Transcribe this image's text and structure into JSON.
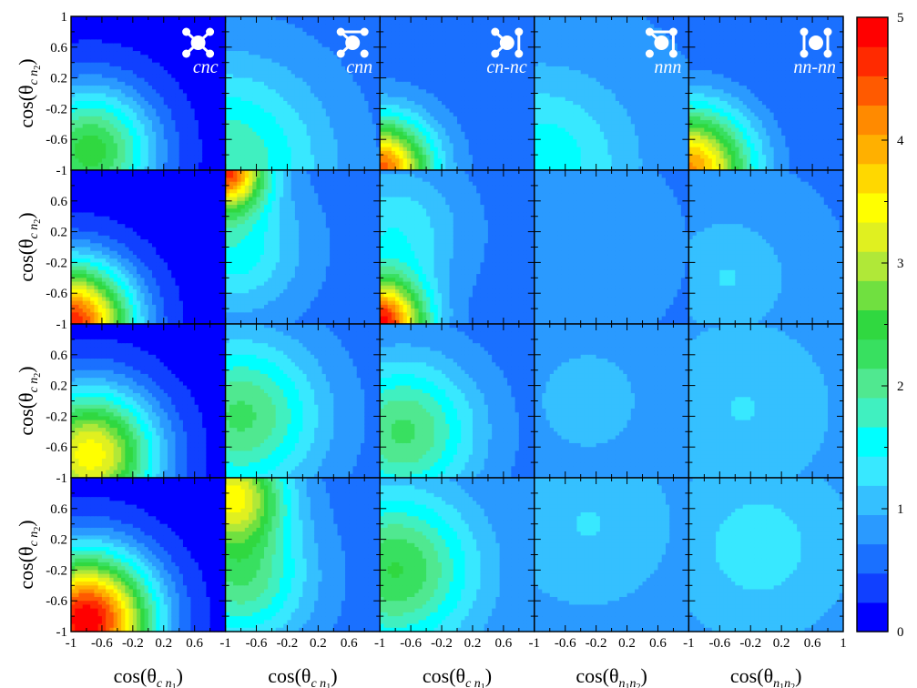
{
  "chart_data": {
    "type": "heatmap",
    "grid": {
      "rows": 4,
      "cols": 5
    },
    "panel_names": [
      "cnc",
      "cnn",
      "cn-nc",
      "nnn",
      "nn-nn"
    ],
    "x_ticks": [
      "-1",
      "-0.6",
      "-0.2",
      "0.2",
      "0.6"
    ],
    "x_ticks_last": [
      "-1",
      "-0.6",
      "-0.2",
      "0.2",
      "0.6",
      "1"
    ],
    "y_ticks": [
      "1",
      "0.6",
      "0.2",
      "-0.2",
      "-0.6",
      "-1"
    ],
    "y_ticks_inner": [
      "0.6",
      "0.2",
      "-0.2",
      "-0.6",
      "-1"
    ],
    "xlim": [
      -1,
      1
    ],
    "ylim": [
      -1,
      1
    ],
    "ylabel": "cos(θ",
    "ylabel_sub": "c n",
    "ylabel_subsub": "2",
    "xlabels": [
      {
        "text": "cos(θ",
        "sub": "c n",
        "subsub": "1"
      },
      {
        "text": "cos(θ",
        "sub": "c n",
        "subsub": "1"
      },
      {
        "text": "cos(θ",
        "sub": "c n",
        "subsub": "1"
      },
      {
        "text": "cos(θ",
        "sub": "n",
        "subsub": "1",
        "sub2": "n",
        "subsub2": "2"
      },
      {
        "text": "cos(θ",
        "sub": "n",
        "subsub": "1",
        "sub2": "n",
        "subsub2": "2"
      }
    ],
    "close_paren": ")",
    "colorbar": {
      "ticks": [
        "0",
        "1",
        "2",
        "3",
        "4",
        "5"
      ],
      "range": [
        0,
        5
      ],
      "colors": [
        "#0000ff",
        "#1040ff",
        "#1a70ff",
        "#2a9aff",
        "#35c0ff",
        "#38e8ff",
        "#00ffff",
        "#40f0c0",
        "#50e890",
        "#38e060",
        "#30d840",
        "#70e040",
        "#b0e838",
        "#e0f020",
        "#ffff00",
        "#ffd800",
        "#ffb000",
        "#ff8a00",
        "#ff5a00",
        "#ff2a00",
        "#ff0000"
      ]
    },
    "panels": [
      {
        "row": 0,
        "col": 0,
        "base": 0.1,
        "peaks": [
          {
            "x": -0.75,
            "y": -0.75,
            "a": 2.4,
            "s": 0.6
          }
        ]
      },
      {
        "row": 0,
        "col": 1,
        "base": 0.6,
        "peaks": [
          {
            "x": -1.0,
            "y": -0.9,
            "a": 1.3,
            "s": 0.9
          }
        ]
      },
      {
        "row": 0,
        "col": 2,
        "base": 0.6,
        "peaks": [
          {
            "x": -1.0,
            "y": -1.0,
            "a": 3.8,
            "s": 0.45
          }
        ]
      },
      {
        "row": 0,
        "col": 3,
        "base": 0.7,
        "peaks": [
          {
            "x": -0.9,
            "y": -0.9,
            "a": 0.9,
            "s": 0.8
          }
        ]
      },
      {
        "row": 0,
        "col": 4,
        "base": 0.5,
        "peaks": [
          {
            "x": -1.0,
            "y": -1.0,
            "a": 3.6,
            "s": 0.55
          }
        ]
      },
      {
        "row": 1,
        "col": 0,
        "base": 0.1,
        "peaks": [
          {
            "x": -1.0,
            "y": -1.0,
            "a": 4.6,
            "s": 0.55
          }
        ]
      },
      {
        "row": 1,
        "col": 1,
        "base": 0.6,
        "peaks": [
          {
            "x": -1.0,
            "y": 1.0,
            "a": 3.8,
            "s": 0.35
          },
          {
            "x": -0.9,
            "y": 0.0,
            "a": 1.0,
            "s": 0.6
          }
        ]
      },
      {
        "row": 1,
        "col": 2,
        "base": 0.6,
        "peaks": [
          {
            "x": -1.0,
            "y": -1.0,
            "a": 4.2,
            "s": 0.4
          },
          {
            "x": -0.8,
            "y": 0.2,
            "a": 0.8,
            "s": 0.6
          }
        ]
      },
      {
        "row": 1,
        "col": 3,
        "base": 0.6,
        "peaks": [
          {
            "x": -0.4,
            "y": 0.0,
            "a": 0.3,
            "s": 1.0
          }
        ]
      },
      {
        "row": 1,
        "col": 4,
        "base": 0.7,
        "peaks": [
          {
            "x": -0.5,
            "y": -0.4,
            "a": 0.5,
            "s": 0.6
          }
        ]
      },
      {
        "row": 2,
        "col": 0,
        "base": 0.1,
        "peaks": [
          {
            "x": -0.75,
            "y": -0.7,
            "a": 3.4,
            "s": 0.6
          }
        ]
      },
      {
        "row": 2,
        "col": 1,
        "base": 0.6,
        "peaks": [
          {
            "x": -0.8,
            "y": -0.2,
            "a": 1.6,
            "s": 0.7
          }
        ]
      },
      {
        "row": 2,
        "col": 2,
        "base": 0.6,
        "peaks": [
          {
            "x": -0.7,
            "y": -0.4,
            "a": 1.6,
            "s": 0.65
          }
        ]
      },
      {
        "row": 2,
        "col": 3,
        "base": 0.7,
        "peaks": [
          {
            "x": -0.3,
            "y": 0.0,
            "a": 0.3,
            "s": 1.0
          }
        ]
      },
      {
        "row": 2,
        "col": 4,
        "base": 0.8,
        "peaks": [
          {
            "x": -0.3,
            "y": -0.1,
            "a": 0.4,
            "s": 0.8
          }
        ]
      },
      {
        "row": 3,
        "col": 0,
        "base": 0.1,
        "peaks": [
          {
            "x": -0.8,
            "y": -0.85,
            "a": 4.9,
            "s": 0.6
          }
        ]
      },
      {
        "row": 3,
        "col": 1,
        "base": 0.6,
        "peaks": [
          {
            "x": -0.9,
            "y": 0.8,
            "a": 2.6,
            "s": 0.45
          },
          {
            "x": -0.8,
            "y": -0.3,
            "a": 1.5,
            "s": 0.6
          }
        ]
      },
      {
        "row": 3,
        "col": 2,
        "base": 0.7,
        "peaks": [
          {
            "x": -0.8,
            "y": -0.2,
            "a": 1.7,
            "s": 0.7
          }
        ]
      },
      {
        "row": 3,
        "col": 3,
        "base": 0.7,
        "peaks": [
          {
            "x": -0.3,
            "y": 0.4,
            "a": 0.5,
            "s": 0.9
          }
        ]
      },
      {
        "row": 3,
        "col": 4,
        "base": 0.8,
        "peaks": [
          {
            "x": -0.1,
            "y": 0.1,
            "a": 0.5,
            "s": 0.8
          }
        ]
      }
    ]
  }
}
